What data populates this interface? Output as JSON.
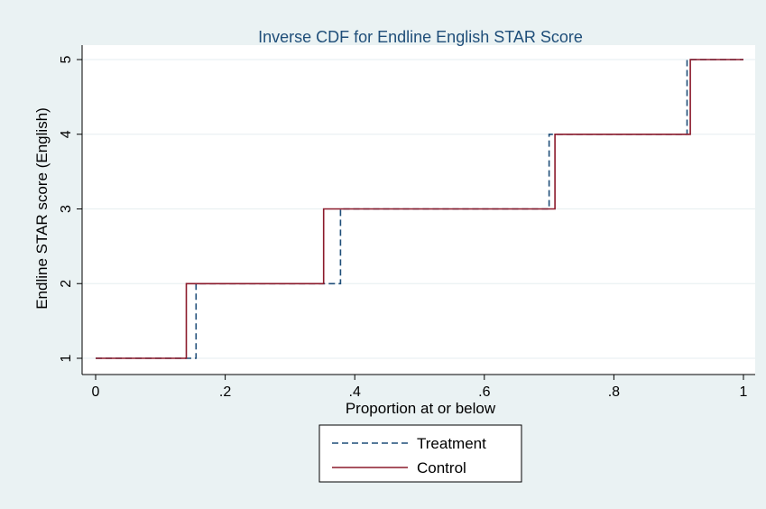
{
  "chart_data": {
    "type": "line",
    "title": "Inverse CDF for Endline English STAR Score",
    "xlabel": "Proportion at or below",
    "ylabel": "Endline STAR score (English)",
    "xlim": [
      0,
      1
    ],
    "ylim": [
      1,
      5
    ],
    "x_ticks": [
      0,
      0.2,
      0.4,
      0.6,
      0.8,
      1
    ],
    "x_tick_labels": [
      "0",
      ".2",
      ".4",
      ".6",
      ".8",
      "1"
    ],
    "y_ticks": [
      1,
      2,
      3,
      4,
      5
    ],
    "y_tick_labels": [
      "1",
      "2",
      "3",
      "4",
      "5"
    ],
    "grid": "horizontal",
    "legend_position": "bottom",
    "series": [
      {
        "name": "Treatment",
        "style": "dashed",
        "color": "#1f4e79",
        "step": true,
        "x": [
          0.0,
          0.155,
          0.155,
          0.378,
          0.378,
          0.7,
          0.7,
          0.913,
          0.913,
          1.0
        ],
        "y": [
          1,
          1,
          2,
          2,
          3,
          3,
          4,
          4,
          5,
          5
        ]
      },
      {
        "name": "Control",
        "style": "solid",
        "color": "#8b1a2b",
        "step": true,
        "x": [
          0.0,
          0.14,
          0.14,
          0.352,
          0.352,
          0.709,
          0.709,
          0.918,
          0.918,
          1.0
        ],
        "y": [
          1,
          1,
          2,
          2,
          3,
          3,
          4,
          4,
          5,
          5
        ]
      }
    ]
  }
}
